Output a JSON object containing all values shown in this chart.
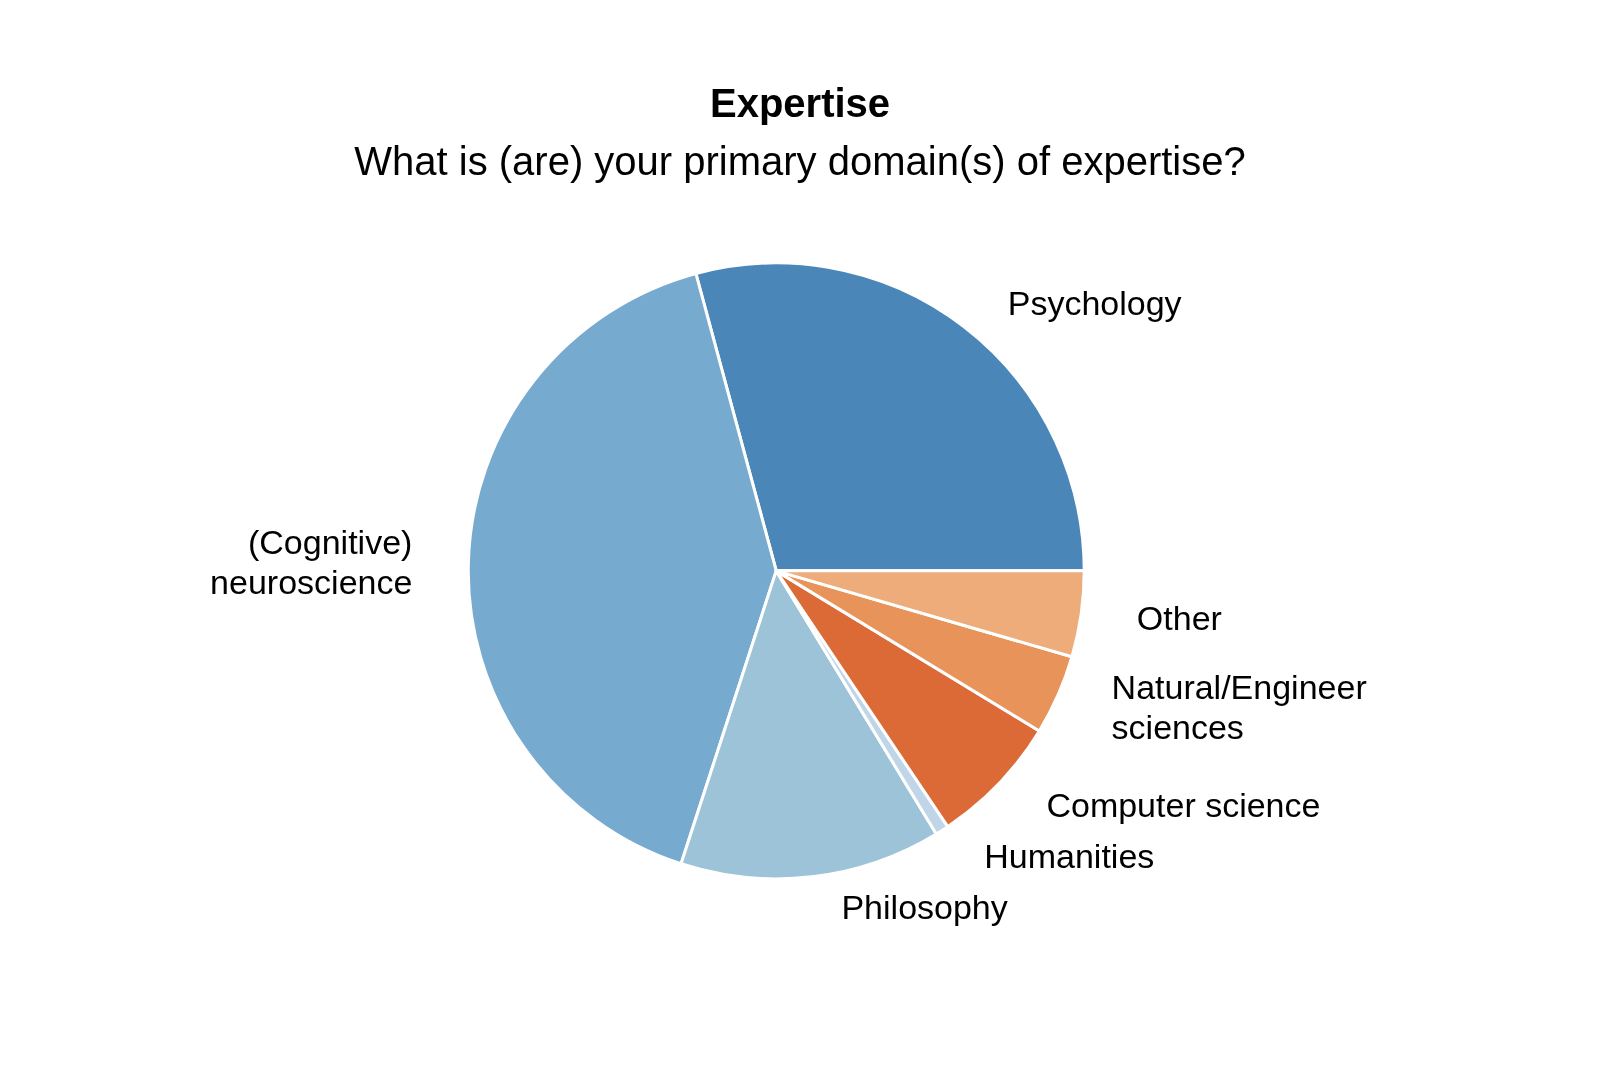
{
  "chart_data": {
    "type": "pie",
    "title": "Expertise",
    "subtitle": "What is (are) your primary domain(s) of expertise?",
    "categories": [
      "Psychology",
      "(Cognitive)\nneuroscience",
      "Philosophy",
      "Humanities",
      "Computer science",
      "Natural/Engineer\nsciences",
      "Other"
    ],
    "values": [
      29.2,
      40.8,
      13.7,
      0.7,
      6.9,
      4.2,
      4.5
    ],
    "colors": [
      "#4a86b8",
      "#76aacf",
      "#9dc3d8",
      "#c0d6e8",
      "#dc6a37",
      "#e8935a",
      "#edac7a"
    ],
    "legend": false
  }
}
